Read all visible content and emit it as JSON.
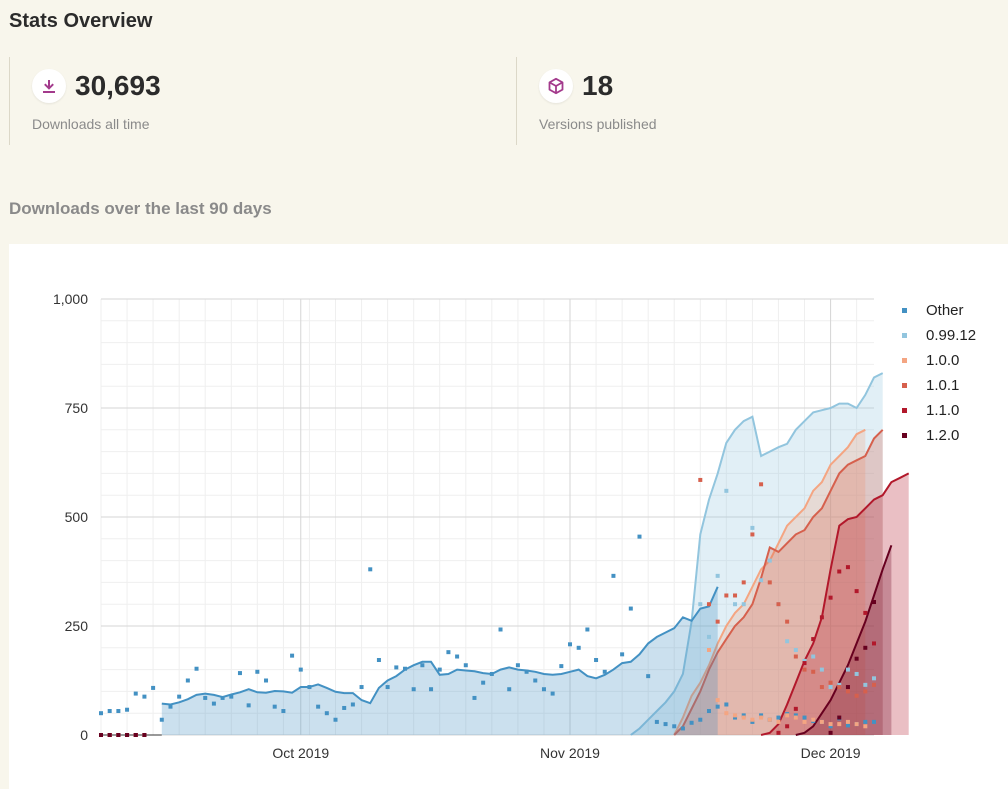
{
  "page": {
    "title": "Stats Overview",
    "section_title": "Downloads over the last 90 days"
  },
  "stats": [
    {
      "icon": "download-icon",
      "value": "30,693",
      "label": "Downloads all time"
    },
    {
      "icon": "package-icon",
      "value": "18",
      "label": "Versions published"
    }
  ],
  "colors": {
    "accent": "#a33a8c",
    "page_bg": "#f8f6ec"
  },
  "chart_data": {
    "type": "area",
    "stacked": true,
    "title": "",
    "xlabel": "",
    "ylabel": "",
    "ylim": [
      0,
      1000
    ],
    "yticks": [
      0,
      250,
      500,
      750,
      1000
    ],
    "ytick_labels": [
      "0",
      "250",
      "500",
      "750",
      "1,000"
    ],
    "xlim": [
      "2019-09-08",
      "2019-12-06"
    ],
    "xticks": [
      "2019-10-01",
      "2019-11-01",
      "2019-12-01"
    ],
    "xtick_labels": [
      "Oct 2019",
      "Nov 2019",
      "Dec 2019"
    ],
    "grid": true,
    "legend_position": "right",
    "x_start": "2019-09-08",
    "series": [
      {
        "name": "Other",
        "color": "#4391c3",
        "points": [
          50,
          55,
          55,
          58,
          95,
          88,
          108,
          35,
          65,
          88,
          125,
          152,
          85,
          72,
          85,
          88,
          142,
          68,
          145,
          125,
          65,
          55,
          182,
          150,
          110,
          65,
          50,
          35,
          62,
          70,
          110,
          380,
          172,
          110,
          155,
          152,
          105,
          160,
          105,
          150,
          190,
          180,
          160,
          85,
          120,
          140,
          242,
          105,
          160,
          145,
          125,
          105,
          95,
          158,
          208,
          200,
          242,
          172,
          145,
          365,
          185,
          290,
          455,
          135,
          30,
          25,
          20,
          15,
          28,
          35,
          55,
          65,
          70,
          40,
          45,
          30,
          45,
          35,
          40,
          48,
          45,
          40,
          32,
          30,
          20,
          38,
          22,
          25,
          30,
          30
        ]
      },
      {
        "name": "0.99.12",
        "color": "#92c5de",
        "points": [
          0,
          0,
          0,
          0,
          0,
          0,
          0,
          0,
          0,
          0,
          0,
          0,
          0,
          0,
          0,
          0,
          0,
          0,
          0,
          0,
          0,
          0,
          0,
          0,
          0,
          0,
          0,
          0,
          0,
          0,
          0,
          0,
          0,
          0,
          0,
          0,
          0,
          0,
          0,
          0,
          0,
          0,
          0,
          0,
          0,
          0,
          0,
          0,
          0,
          0,
          0,
          0,
          0,
          0,
          0,
          0,
          0,
          0,
          0,
          0,
          0,
          0,
          0,
          0,
          0,
          0,
          0,
          0,
          0,
          300,
          225,
          365,
          560,
          300,
          300,
          475,
          355,
          400,
          300,
          215,
          195,
          170,
          180,
          150,
          110,
          115,
          150,
          140,
          115,
          130
        ]
      },
      {
        "name": "1.0.0",
        "color": "#f4a582",
        "points": [
          0,
          0,
          0,
          0,
          0,
          0,
          0,
          0,
          0,
          0,
          0,
          0,
          0,
          0,
          0,
          0,
          0,
          0,
          0,
          0,
          0,
          0,
          0,
          0,
          0,
          0,
          0,
          0,
          0,
          0,
          0,
          0,
          0,
          0,
          0,
          0,
          0,
          0,
          0,
          0,
          0,
          0,
          0,
          0,
          0,
          0,
          0,
          0,
          0,
          0,
          0,
          0,
          0,
          0,
          0,
          0,
          0,
          0,
          0,
          0,
          0,
          0,
          0,
          0,
          0,
          0,
          0,
          0,
          0,
          0,
          195,
          80,
          50,
          45,
          40,
          35,
          40,
          35,
          30,
          45,
          40,
          30,
          35,
          30,
          25,
          25,
          30,
          25,
          20,
          0
        ]
      },
      {
        "name": "1.0.1",
        "color": "#d6604d",
        "points": [
          0,
          0,
          0,
          0,
          0,
          0,
          0,
          0,
          0,
          0,
          0,
          0,
          0,
          0,
          0,
          0,
          0,
          0,
          0,
          0,
          0,
          0,
          0,
          0,
          0,
          0,
          0,
          0,
          0,
          0,
          0,
          0,
          0,
          0,
          0,
          0,
          0,
          0,
          0,
          0,
          0,
          0,
          0,
          0,
          0,
          0,
          0,
          0,
          0,
          0,
          0,
          0,
          0,
          0,
          0,
          0,
          0,
          0,
          0,
          0,
          0,
          0,
          0,
          0,
          0,
          0,
          0,
          0,
          0,
          585,
          300,
          260,
          320,
          320,
          350,
          460,
          575,
          350,
          300,
          260,
          180,
          150,
          145,
          110,
          120,
          110,
          100,
          90,
          100,
          115
        ]
      },
      {
        "name": "1.1.0",
        "color": "#b2182b",
        "points": [
          0,
          0,
          0,
          0,
          0,
          0,
          0,
          0,
          0,
          0,
          0,
          0,
          0,
          0,
          0,
          0,
          0,
          0,
          0,
          0,
          0,
          0,
          0,
          0,
          0,
          0,
          0,
          0,
          0,
          0,
          0,
          0,
          0,
          0,
          0,
          0,
          0,
          0,
          0,
          0,
          0,
          0,
          0,
          0,
          0,
          0,
          0,
          0,
          0,
          0,
          0,
          0,
          0,
          0,
          0,
          0,
          0,
          0,
          0,
          0,
          0,
          0,
          0,
          0,
          0,
          0,
          0,
          0,
          0,
          0,
          0,
          0,
          0,
          0,
          0,
          0,
          0,
          0,
          5,
          20,
          60,
          165,
          220,
          270,
          315,
          375,
          385,
          330,
          280,
          210
        ]
      },
      {
        "name": "1.2.0",
        "color": "#67001f",
        "points": [
          0,
          0,
          0,
          0,
          0,
          0,
          0,
          0,
          0,
          0,
          0,
          0,
          0,
          0,
          0,
          0,
          0,
          0,
          0,
          0,
          0,
          0,
          0,
          0,
          0,
          0,
          0,
          0,
          0,
          0,
          0,
          0,
          0,
          0,
          0,
          0,
          0,
          0,
          0,
          0,
          0,
          0,
          0,
          0,
          0,
          0,
          0,
          0,
          0,
          0,
          0,
          0,
          0,
          0,
          0,
          0,
          0,
          0,
          0,
          0,
          0,
          0,
          0,
          0,
          0,
          0,
          0,
          0,
          0,
          0,
          0,
          0,
          0,
          0,
          0,
          0,
          0,
          0,
          0,
          0,
          0,
          0,
          0,
          0,
          5,
          40,
          110,
          175,
          200,
          305
        ]
      }
    ],
    "smoothed_totals": [
      {
        "name": "Other",
        "start_day": 7,
        "values": [
          72,
          70,
          75,
          82,
          92,
          95,
          92,
          87,
          93,
          98,
          105,
          98,
          97,
          101,
          100,
          97,
          110,
          110,
          116,
          108,
          99,
          96,
          96,
          80,
          73,
          108,
          125,
          135,
          150,
          160,
          168,
          168,
          138,
          140,
          150,
          148,
          146,
          142,
          140,
          150,
          155,
          150,
          148,
          145,
          140,
          138,
          140,
          145,
          150,
          135,
          130,
          138,
          150,
          165,
          168,
          185,
          210,
          225,
          235,
          245,
          270,
          262,
          290,
          295,
          340
        ]
      },
      {
        "name": "0.99.12",
        "start_day": 61,
        "values": [
          0,
          15,
          35,
          55,
          75,
          100,
          140,
          260,
          460,
          540,
          600,
          670,
          700,
          720,
          730,
          640,
          650,
          660,
          668,
          700,
          720,
          740,
          745,
          750,
          760,
          760,
          750,
          780,
          820,
          830
        ]
      },
      {
        "name": "1.0.0",
        "start_day": 66,
        "values": [
          0,
          40,
          90,
          120,
          160,
          210,
          250,
          280,
          300,
          340,
          380,
          400,
          440,
          480,
          500,
          520,
          560,
          580,
          620,
          640,
          660,
          690,
          700
        ]
      },
      {
        "name": "1.0.1",
        "start_day": 66,
        "values": [
          0,
          20,
          60,
          100,
          150,
          190,
          220,
          250,
          270,
          300,
          360,
          430,
          420,
          440,
          460,
          470,
          500,
          520,
          560,
          600,
          620,
          630,
          640,
          680,
          700
        ]
      },
      {
        "name": "1.1.0",
        "start_day": 76,
        "values": [
          0,
          5,
          25,
          70,
          120,
          170,
          210,
          270,
          380,
          480,
          495,
          500,
          520,
          540,
          550,
          580,
          590,
          600
        ]
      },
      {
        "name": "1.2.0",
        "start_day": 80,
        "values": [
          0,
          5,
          20,
          50,
          80,
          120,
          160,
          210,
          260,
          320,
          380,
          435
        ]
      }
    ]
  }
}
